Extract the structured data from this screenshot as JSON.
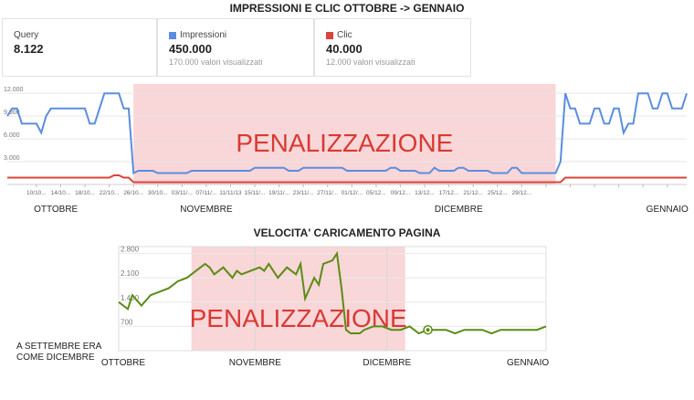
{
  "title_top": "IMPRESSIONI E CLIC OTTOBRE -> GENNAIO",
  "title_bottom": "VELOCITA' CARICAMENTO PAGINA",
  "stats": [
    {
      "label": "Query",
      "value": "8.122",
      "sub": "",
      "color": ""
    },
    {
      "label": "Impressioni",
      "value": "450.000",
      "sub": "170.000 valori visualizzati",
      "color": "#5b8de0"
    },
    {
      "label": "Clic",
      "value": "40.000",
      "sub": "12.000 valori visualizzati",
      "color": "#d9453a"
    }
  ],
  "side_note": [
    "A SETTEMBRE ERA",
    "COME DICEMBRE"
  ],
  "chart_data": [
    {
      "type": "line",
      "penalty_label": "PENALIZZAZIONE",
      "penalty_range": [
        26,
        113
      ],
      "ylim": [
        0,
        12500
      ],
      "yticks": [
        3000,
        6000,
        9000,
        12000
      ],
      "ytick_labels": [
        "3.000",
        "6.000",
        "9.000",
        "12.000"
      ],
      "x": [
        0,
        1,
        2,
        3,
        4,
        5,
        6,
        7,
        8,
        9,
        10,
        11,
        12,
        13,
        14,
        15,
        16,
        17,
        18,
        19,
        20,
        21,
        22,
        23,
        24,
        25,
        26,
        27,
        28,
        29,
        30,
        31,
        32,
        33,
        34,
        35,
        36,
        37,
        38,
        39,
        40,
        41,
        42,
        43,
        44,
        45,
        46,
        47,
        48,
        49,
        50,
        51,
        52,
        53,
        54,
        55,
        56,
        57,
        58,
        59,
        60,
        61,
        62,
        63,
        64,
        65,
        66,
        67,
        68,
        69,
        70,
        71,
        72,
        73,
        74,
        75,
        76,
        77,
        78,
        79,
        80,
        81,
        82,
        83,
        84,
        85,
        86,
        87,
        88,
        89,
        90,
        91,
        92,
        93,
        94,
        95,
        96,
        97,
        98,
        99,
        100,
        101,
        102,
        103,
        104,
        105,
        106,
        107,
        108,
        109,
        110,
        111,
        112,
        113,
        114,
        115,
        116,
        117,
        118,
        119,
        120,
        121,
        122,
        123,
        124,
        125,
        126,
        127,
        128,
        129,
        130,
        131,
        132,
        133,
        134,
        135,
        136,
        137,
        138,
        139,
        140
      ],
      "tick_positions": [
        6,
        11,
        16,
        21,
        26,
        31,
        36,
        41,
        46,
        51,
        56,
        61,
        66,
        71,
        76,
        81,
        86,
        91,
        96,
        101,
        106,
        111,
        116,
        121,
        126,
        131,
        136
      ],
      "tick_labels": [
        "10/10...",
        "14/10...",
        "18/10...",
        "22/10...",
        "26/10...",
        "30/10...",
        "03/11/...",
        "07/11/...",
        "11/11/13",
        "15/11/...",
        "19/11/...",
        "23/11/...",
        "27/11/...",
        "01/12/...",
        "05/12...",
        "09/12...",
        "13/12...",
        "17/12...",
        "21/12...",
        "25/12...",
        "29/12...",
        "",
        "",
        "",
        "",
        "",
        ""
      ],
      "month_labels": [
        {
          "label": "OTTOBRE",
          "x": 10
        },
        {
          "label": "NOVEMBRE",
          "x": 41
        },
        {
          "label": "DICEMBRE",
          "x": 93
        },
        {
          "label": "GENNAIO",
          "x": 136
        }
      ],
      "series": [
        {
          "name": "Impressioni",
          "color": "#5b8de0",
          "values": [
            9000,
            10000,
            10000,
            8000,
            8000,
            8000,
            8000,
            6800,
            9000,
            10000,
            10000,
            10000,
            10000,
            10000,
            10000,
            10000,
            10000,
            8000,
            8000,
            10000,
            12000,
            12000,
            12000,
            12000,
            10000,
            10000,
            1500,
            1800,
            1800,
            1800,
            1800,
            1500,
            1500,
            1500,
            1500,
            1500,
            1500,
            1500,
            1800,
            1800,
            1800,
            1800,
            1800,
            1800,
            1800,
            1800,
            1800,
            1800,
            1800,
            1800,
            1800,
            2200,
            2200,
            2200,
            2200,
            2200,
            2200,
            2200,
            1800,
            1800,
            1800,
            2200,
            2200,
            2200,
            2200,
            2200,
            2200,
            2200,
            2200,
            2200,
            1800,
            1800,
            1800,
            1800,
            1800,
            1800,
            1800,
            1800,
            1800,
            2200,
            2200,
            1800,
            1800,
            1800,
            1800,
            1500,
            1500,
            1500,
            2200,
            1800,
            1800,
            1800,
            1800,
            2200,
            2200,
            1800,
            1800,
            1800,
            1800,
            1800,
            1500,
            1500,
            1500,
            1500,
            2200,
            2200,
            1500,
            1500,
            1500,
            1500,
            1500,
            1500,
            1500,
            1500,
            3000,
            12000,
            10000,
            10000,
            8000,
            8000,
            8000,
            10000,
            10000,
            8000,
            8000,
            10000,
            10000,
            6800,
            8000,
            8000,
            12000,
            12000,
            12000,
            10000,
            10000,
            12000,
            12000,
            10000,
            10000,
            10000,
            12000
          ]
        },
        {
          "name": "Clic",
          "color": "#d9453a",
          "values": [
            900,
            900,
            900,
            900,
            900,
            900,
            900,
            900,
            900,
            900,
            900,
            900,
            900,
            900,
            900,
            900,
            900,
            900,
            900,
            900,
            900,
            900,
            1200,
            1200,
            900,
            900,
            300,
            300,
            300,
            300,
            300,
            300,
            300,
            300,
            300,
            300,
            300,
            300,
            300,
            300,
            300,
            300,
            300,
            300,
            300,
            300,
            300,
            300,
            300,
            300,
            300,
            300,
            300,
            300,
            300,
            300,
            300,
            300,
            300,
            300,
            300,
            300,
            300,
            300,
            300,
            300,
            300,
            300,
            300,
            300,
            300,
            300,
            300,
            300,
            300,
            300,
            300,
            300,
            300,
            300,
            300,
            300,
            300,
            300,
            300,
            300,
            300,
            300,
            300,
            300,
            300,
            300,
            300,
            300,
            300,
            300,
            300,
            300,
            300,
            300,
            300,
            300,
            300,
            300,
            300,
            300,
            300,
            300,
            300,
            300,
            300,
            300,
            300,
            300,
            300,
            900,
            900,
            900,
            900,
            900,
            900,
            900,
            900,
            900,
            900,
            900,
            900,
            900,
            900,
            900,
            900,
            900,
            900,
            900,
            900,
            900,
            900,
            900,
            900,
            900,
            900
          ]
        }
      ]
    },
    {
      "type": "line",
      "penalty_label": "PENALIZZAZIONE",
      "penalty_range": [
        16,
        63
      ],
      "ylim": [
        0,
        3000
      ],
      "yticks": [
        700,
        1400,
        2100,
        2800
      ],
      "ytick_labels": [
        "700",
        "1.400",
        "2.100",
        "2.800"
      ],
      "month_labels": [
        {
          "label": "OTTOBRE",
          "x": 1
        },
        {
          "label": "NOVEMBRE",
          "x": 30
        },
        {
          "label": "DICEMBRE",
          "x": 59
        },
        {
          "label": "GENNAIO",
          "x": 90
        }
      ],
      "series": [
        {
          "name": "",
          "color": "#5a8c14",
          "x": [
            0,
            2,
            3,
            5,
            7,
            9,
            11,
            13,
            15,
            17,
            19,
            20,
            21,
            23,
            25,
            26,
            27,
            29,
            31,
            32,
            33,
            35,
            37,
            39,
            40,
            41,
            43,
            44,
            45,
            47,
            48,
            49,
            50,
            51,
            52,
            53,
            54,
            56,
            58,
            60,
            62,
            64,
            66,
            68,
            70,
            72,
            74,
            76,
            78,
            80,
            82,
            84,
            86,
            88,
            90,
            92,
            94
          ],
          "values": [
            1400,
            1200,
            1600,
            1300,
            1600,
            1700,
            1800,
            2000,
            2100,
            2300,
            2500,
            2400,
            2200,
            2400,
            2100,
            2300,
            2200,
            2300,
            2400,
            2300,
            2500,
            2100,
            2400,
            2200,
            2500,
            1500,
            2100,
            1900,
            2500,
            2600,
            2800,
            1800,
            600,
            500,
            500,
            500,
            600,
            700,
            700,
            600,
            600,
            700,
            500,
            600,
            600,
            600,
            500,
            600,
            600,
            600,
            500,
            600,
            600,
            600,
            600,
            600,
            700
          ]
        }
      ]
    }
  ]
}
